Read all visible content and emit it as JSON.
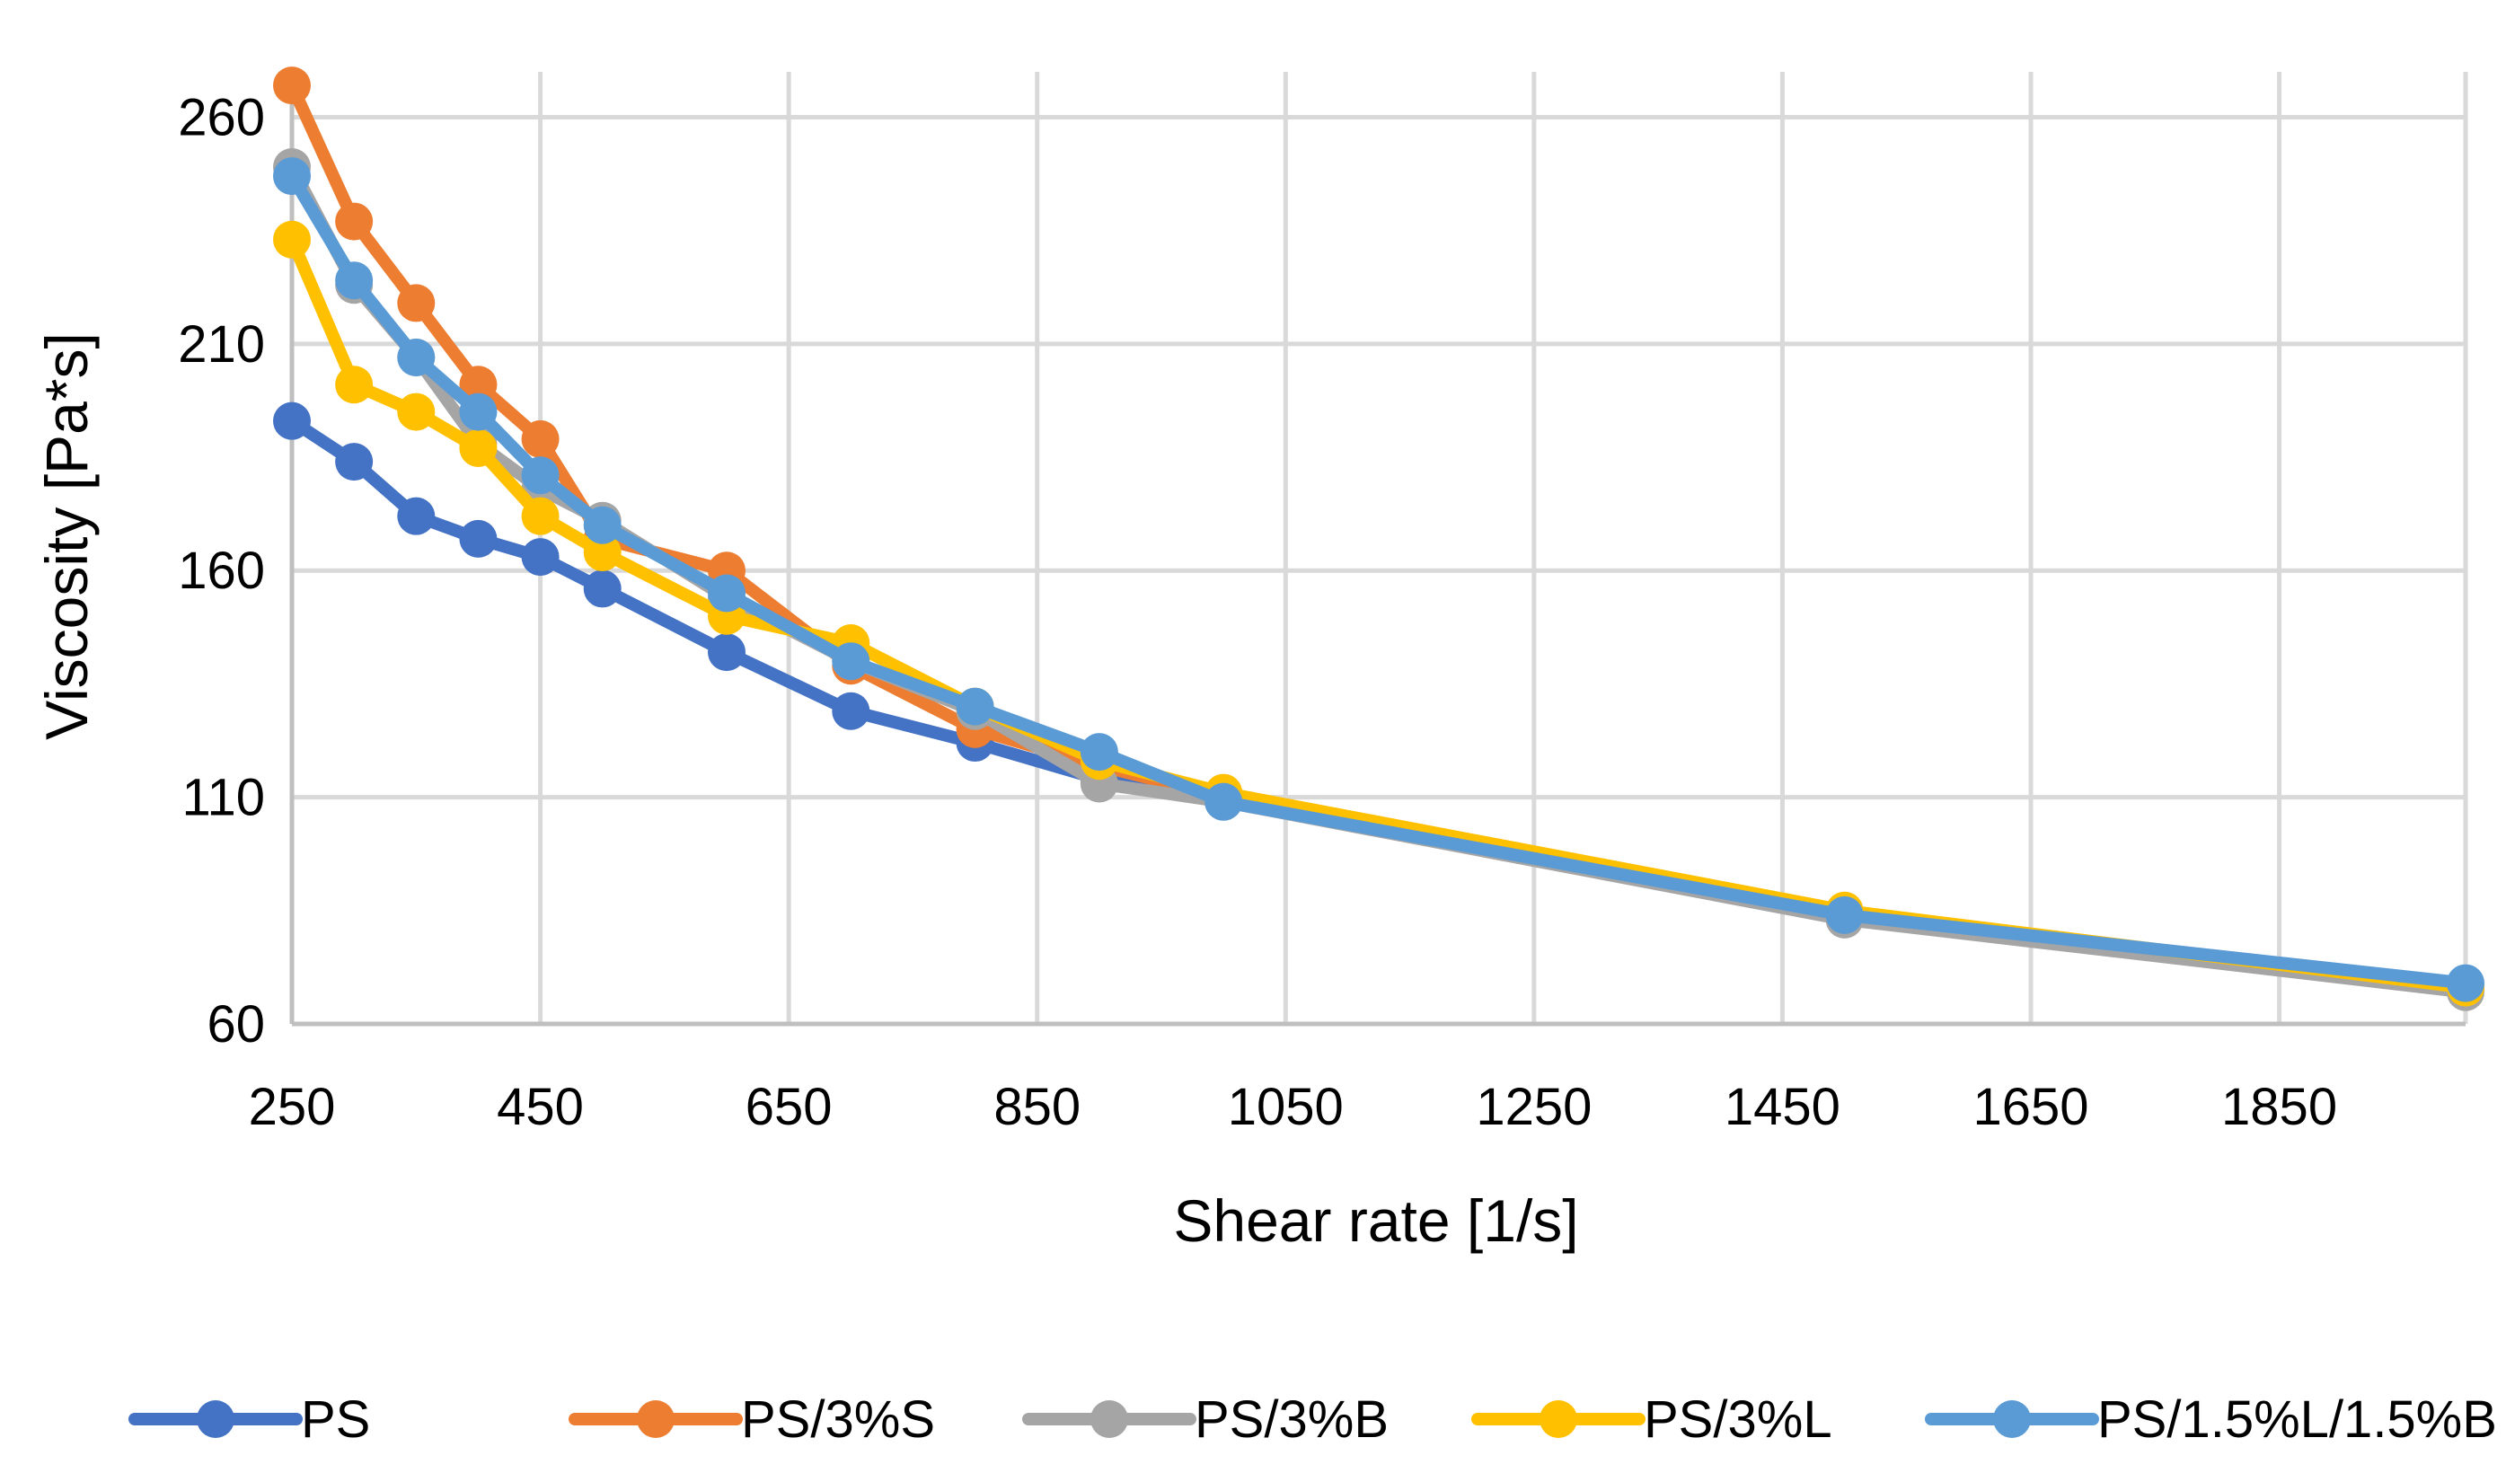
{
  "chart_data": {
    "type": "line",
    "title": "",
    "xlabel": "Shear rate [1/s]",
    "ylabel": "Viscosity [Pa*s]",
    "xlim": [
      250,
      2000
    ],
    "ylim": [
      60,
      270
    ],
    "x_ticks": [
      250,
      450,
      650,
      850,
      1050,
      1250,
      1450,
      1650,
      1850
    ],
    "y_ticks": [
      60,
      110,
      160,
      210,
      260
    ],
    "grid": true,
    "legend_position": "bottom",
    "series": [
      {
        "name": "PS",
        "color": "#4472C4",
        "x": [
          250,
          300,
          350,
          400,
          450,
          500,
          600,
          700,
          800,
          900,
          1000,
          1500,
          2000
        ],
        "y": [
          193,
          184,
          172,
          167,
          163,
          156,
          142,
          129,
          122,
          114,
          109,
          84,
          68
        ]
      },
      {
        "name": "PS/3%S",
        "color": "#ED7D31",
        "x": [
          250,
          300,
          350,
          400,
          450,
          500,
          600,
          700,
          800,
          900,
          1000,
          1500,
          2000
        ],
        "y": [
          267,
          237,
          219,
          201,
          189,
          167,
          160,
          139,
          125,
          117,
          110,
          84,
          68
        ]
      },
      {
        "name": "PS/3%B",
        "color": "#A5A5A5",
        "x": [
          250,
          300,
          350,
          400,
          450,
          500,
          600,
          700,
          800,
          900,
          1000,
          1500,
          2000
        ],
        "y": [
          249,
          223,
          207,
          188,
          178,
          171,
          154,
          140,
          129,
          113,
          109,
          83,
          67
        ]
      },
      {
        "name": "PS/3%L",
        "color": "#FFC000",
        "x": [
          250,
          300,
          350,
          400,
          450,
          500,
          600,
          700,
          800,
          900,
          1000,
          1500,
          2000
        ],
        "y": [
          233,
          201,
          195,
          187,
          172,
          164,
          150,
          144,
          130,
          118,
          111,
          85,
          68
        ]
      },
      {
        "name": "PS/1.5%L/1.5%B",
        "color": "#5B9BD5",
        "x": [
          250,
          300,
          350,
          400,
          450,
          500,
          600,
          700,
          800,
          900,
          1000,
          1500,
          2000
        ],
        "y": [
          247,
          224,
          207,
          195,
          181,
          170,
          155,
          140,
          130,
          120,
          109,
          84,
          69
        ]
      }
    ]
  }
}
